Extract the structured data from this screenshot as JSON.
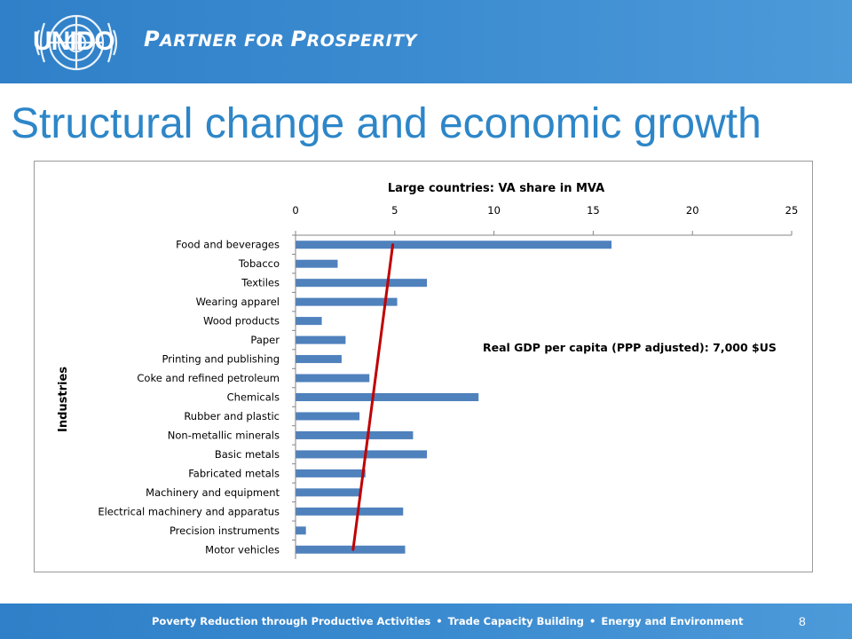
{
  "header": {
    "logo_text": "UNIDO",
    "tagline_p1_cap": "P",
    "tagline_p1_rest": "ARTNER FOR ",
    "tagline_p2_cap": "P",
    "tagline_p2_rest": "ROSPERITY"
  },
  "slide": {
    "title": "Structural change and economic growth",
    "page_number": "8"
  },
  "footer": {
    "items": [
      "Poverty Reduction through Productive Activities",
      "Trade Capacity Building",
      "Energy and Environment"
    ],
    "separator": "•"
  },
  "colors": {
    "brand_blue": "#3a8ad0",
    "title_blue": "#2d86c8",
    "bar_blue": "#4f81bd",
    "trend_red": "#c00000"
  },
  "chart_data": {
    "type": "bar",
    "orientation": "horizontal",
    "title": "Large countries: VA share in MVA",
    "ylabel": "Industries",
    "xlabel": "",
    "xlim": [
      0,
      25
    ],
    "xticks": [
      "0",
      "5",
      "10",
      "15",
      "20",
      "25"
    ],
    "x_axis_position": "top",
    "grid": false,
    "legend": "none",
    "categories": [
      "Food and beverages",
      "Tobacco",
      "Textiles",
      "Wearing apparel",
      "Wood products",
      "Paper",
      "Printing and publishing",
      "Coke and refined petroleum",
      "Chemicals",
      "Rubber and plastic",
      "Non-metallic minerals",
      "Basic metals",
      "Fabricated metals",
      "Machinery and equipment",
      "Electrical machinery and apparatus",
      "Precision instruments",
      "Motor vehicles"
    ],
    "values": [
      15.9,
      2.1,
      6.6,
      5.1,
      1.3,
      2.5,
      2.3,
      3.7,
      9.2,
      3.2,
      5.9,
      6.6,
      3.5,
      3.3,
      5.4,
      0.5,
      5.5
    ],
    "trend_line": {
      "x_start": 4.9,
      "x_end": 2.9
    },
    "annotation": "Real GDP per capita (PPP adjusted): 7,000 $US"
  }
}
